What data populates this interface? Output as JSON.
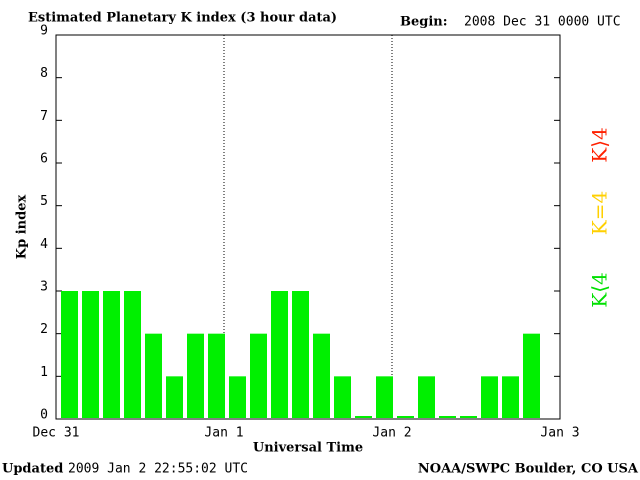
{
  "chart_data": {
    "type": "bar",
    "title": "Estimated Planetary K index (3 hour data)",
    "begin_label": "Begin:",
    "begin": "2008 Dec 31 0000 UTC",
    "y_label": "Kp index",
    "x_label": "Universal Time",
    "updated_label": "Updated",
    "updated": "2009 Jan  2 22:55:02 UTC",
    "source": "NOAA/SWPC Boulder, CO USA",
    "categories": [
      null,
      null,
      null,
      null,
      null,
      null,
      null,
      null,
      null,
      null,
      null,
      null,
      null,
      null,
      null,
      null,
      null,
      null,
      null,
      null,
      null,
      null,
      null,
      null
    ],
    "values": [
      3,
      3,
      3,
      3,
      2,
      1,
      2,
      2,
      1,
      2,
      3,
      3,
      2,
      1,
      0,
      1,
      0,
      1,
      0,
      0,
      1,
      1,
      2,
      null
    ],
    "color": "#00f000",
    "xlim": [
      0,
      24
    ],
    "xticks": [
      {
        "value": 0,
        "label": "Dec 31"
      },
      {
        "value": 8,
        "label": "Jan 1"
      },
      {
        "value": 16,
        "label": "Jan 2"
      },
      {
        "value": 24,
        "label": "Jan 3"
      }
    ],
    "ylim": [
      0,
      9
    ],
    "yticks": [
      0,
      1,
      2,
      3,
      4,
      5,
      6,
      7,
      8,
      9
    ],
    "legend": [
      {
        "label": "K⟨4",
        "color": "#00e000"
      },
      {
        "label": "K=4",
        "color": "#ffd000"
      },
      {
        "label": "K⟩4",
        "color": "#ff2000"
      }
    ]
  }
}
